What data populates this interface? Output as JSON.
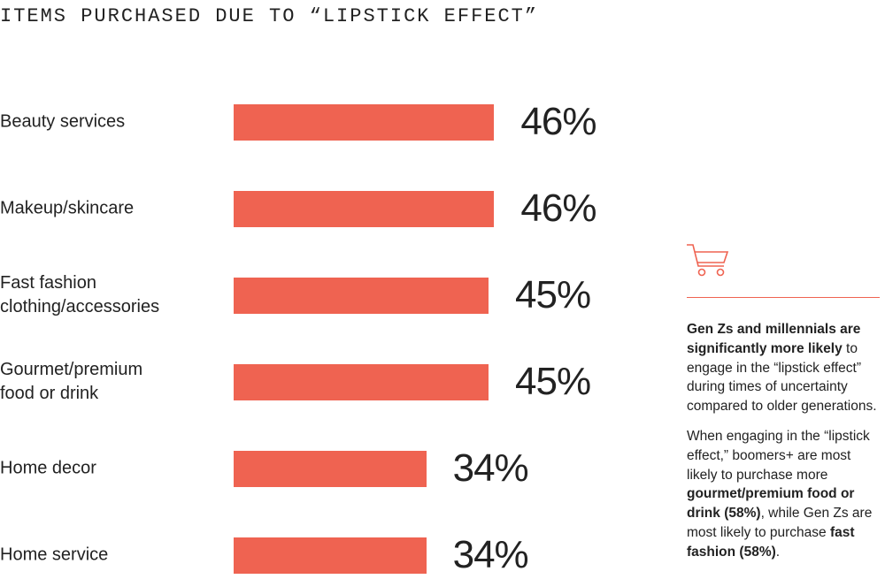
{
  "chart_data": {
    "type": "bar",
    "orientation": "horizontal",
    "title": "ITEMS PURCHASED DUE TO “LIPSTICK EFFECT”",
    "categories": [
      "Beauty services",
      "Makeup/skincare",
      "Fast fashion clothing/accessories",
      "Gourmet/premium food or drink",
      "Home decor",
      "Home service"
    ],
    "values": [
      46,
      46,
      45,
      45,
      34,
      34
    ],
    "value_labels": [
      "46%",
      "46%",
      "45%",
      "45%",
      "34%",
      "34%"
    ],
    "color": "#ef6351"
  },
  "sidebar": {
    "paragraphs": [
      [
        {
          "text": "Gen Zs and millennials are significantly more likely",
          "bold": true
        },
        {
          "text": " to engage in the “lipstick effect” during times of uncertainty compared to older generations.",
          "bold": false
        }
      ],
      [
        {
          "text": "When engaging in the “lipstick effect,” boomers+ are most likely to purchase more ",
          "bold": false
        },
        {
          "text": "gourmet/premium food or drink (58%)",
          "bold": true
        },
        {
          "text": ", while Gen Zs are most likely to purchase ",
          "bold": false
        },
        {
          "text": "fast fashion (58%)",
          "bold": true
        },
        {
          "text": ".",
          "bold": false
        }
      ]
    ]
  }
}
